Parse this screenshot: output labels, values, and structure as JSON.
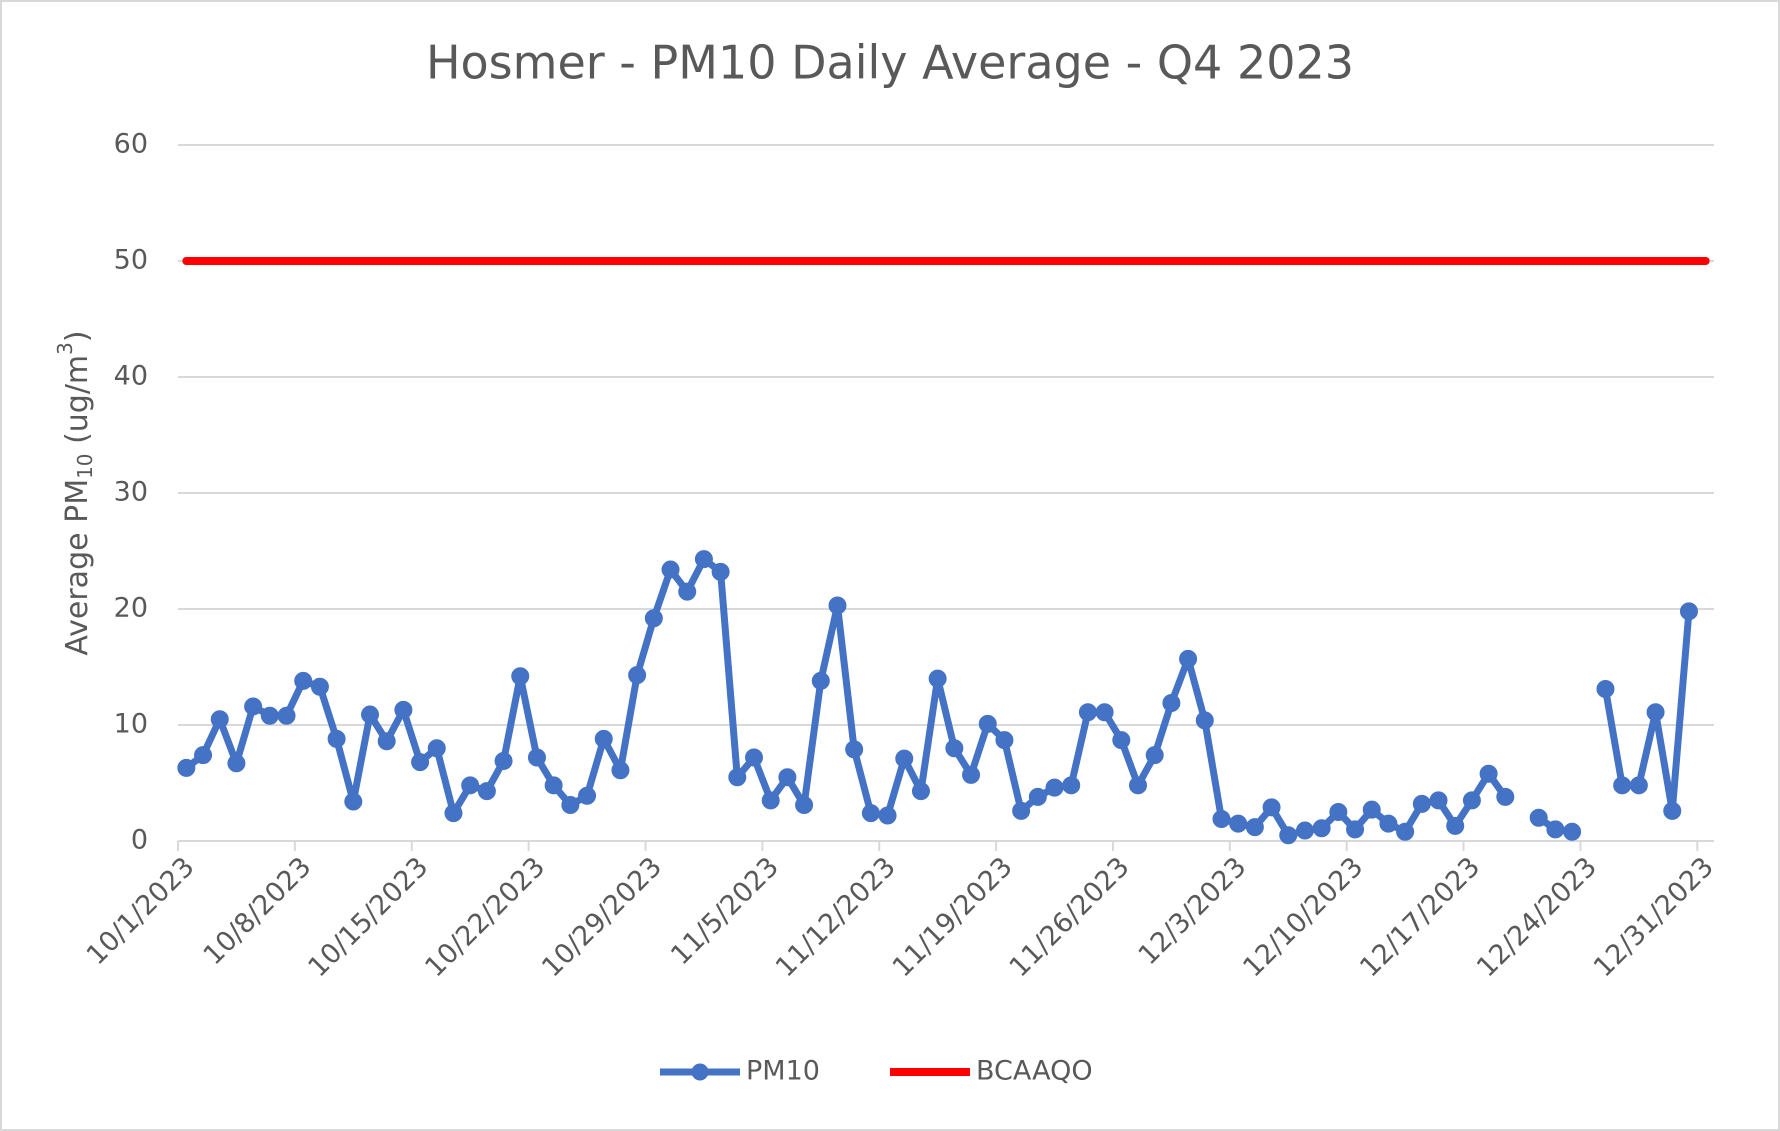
{
  "chart_data": {
    "type": "line",
    "title": "Hosmer - PM10 Daily Average - Q4 2023",
    "y_label": [
      "Average PM",
      "10",
      " (ug/m",
      "3",
      ")"
    ],
    "categories": [
      "10/1/2023",
      null,
      null,
      null,
      null,
      null,
      null,
      "10/8/2023",
      null,
      null,
      null,
      null,
      null,
      null,
      "10/15/2023",
      null,
      null,
      null,
      null,
      null,
      null,
      "10/22/2023",
      null,
      null,
      null,
      null,
      null,
      null,
      "10/29/2023",
      null,
      null,
      null,
      null,
      null,
      null,
      "11/5/2023",
      null,
      null,
      null,
      null,
      null,
      null,
      "11/12/2023",
      null,
      null,
      null,
      null,
      null,
      null,
      "11/19/2023",
      null,
      null,
      null,
      null,
      null,
      null,
      "11/26/2023",
      null,
      null,
      null,
      null,
      null,
      null,
      "12/3/2023",
      null,
      null,
      null,
      null,
      null,
      null,
      "12/10/2023",
      null,
      null,
      null,
      null,
      null,
      null,
      "12/17/2023",
      null,
      null,
      null,
      null,
      null,
      null,
      "12/24/2023",
      null,
      null,
      null,
      null,
      null,
      null,
      "12/31/2023"
    ],
    "series": [
      {
        "name": "PM10",
        "color": "#4472c4",
        "markers": true,
        "values": [
          6.3,
          7.4,
          10.5,
          6.7,
          11.6,
          10.8,
          10.8,
          13.8,
          13.3,
          8.8,
          3.4,
          10.9,
          8.6,
          11.3,
          6.8,
          8.0,
          2.4,
          4.8,
          4.3,
          6.9,
          14.2,
          7.2,
          4.8,
          3.1,
          3.9,
          8.8,
          6.1,
          14.3,
          19.2,
          23.4,
          21.5,
          24.3,
          23.2,
          5.5,
          7.2,
          3.5,
          5.5,
          3.1,
          13.8,
          20.3,
          7.9,
          2.4,
          2.2,
          7.1,
          4.3,
          14.0,
          8.0,
          5.7,
          10.1,
          8.7,
          2.6,
          3.8,
          4.6,
          4.8,
          11.1,
          11.1,
          8.7,
          4.8,
          7.4,
          11.9,
          15.7,
          10.4,
          1.9,
          1.5,
          1.2,
          2.9,
          0.5,
          0.9,
          1.1,
          2.5,
          1.0,
          2.7,
          1.5,
          0.8,
          3.2,
          3.5,
          1.3,
          3.5,
          5.8,
          3.8,
          null,
          2.0,
          1.0,
          0.8,
          null,
          13.1,
          4.8,
          4.8,
          11.1,
          2.6,
          19.8,
          null
        ]
      },
      {
        "name": "BCAAQO",
        "color": "#ff0000",
        "markers": false,
        "values": [
          50,
          50,
          50,
          50,
          50,
          50,
          50,
          50,
          50,
          50,
          50,
          50,
          50,
          50,
          50,
          50,
          50,
          50,
          50,
          50,
          50,
          50,
          50,
          50,
          50,
          50,
          50,
          50,
          50,
          50,
          50,
          50,
          50,
          50,
          50,
          50,
          50,
          50,
          50,
          50,
          50,
          50,
          50,
          50,
          50,
          50,
          50,
          50,
          50,
          50,
          50,
          50,
          50,
          50,
          50,
          50,
          50,
          50,
          50,
          50,
          50,
          50,
          50,
          50,
          50,
          50,
          50,
          50,
          50,
          50,
          50,
          50,
          50,
          50,
          50,
          50,
          50,
          50,
          50,
          50,
          50,
          50,
          50,
          50,
          50,
          50,
          50,
          50,
          50,
          50,
          50,
          50
        ]
      }
    ],
    "ylim": [
      0,
      60
    ],
    "yticks": [
      0,
      10,
      20,
      30,
      40,
      50,
      60
    ],
    "grid": true,
    "legend": "bottom"
  }
}
